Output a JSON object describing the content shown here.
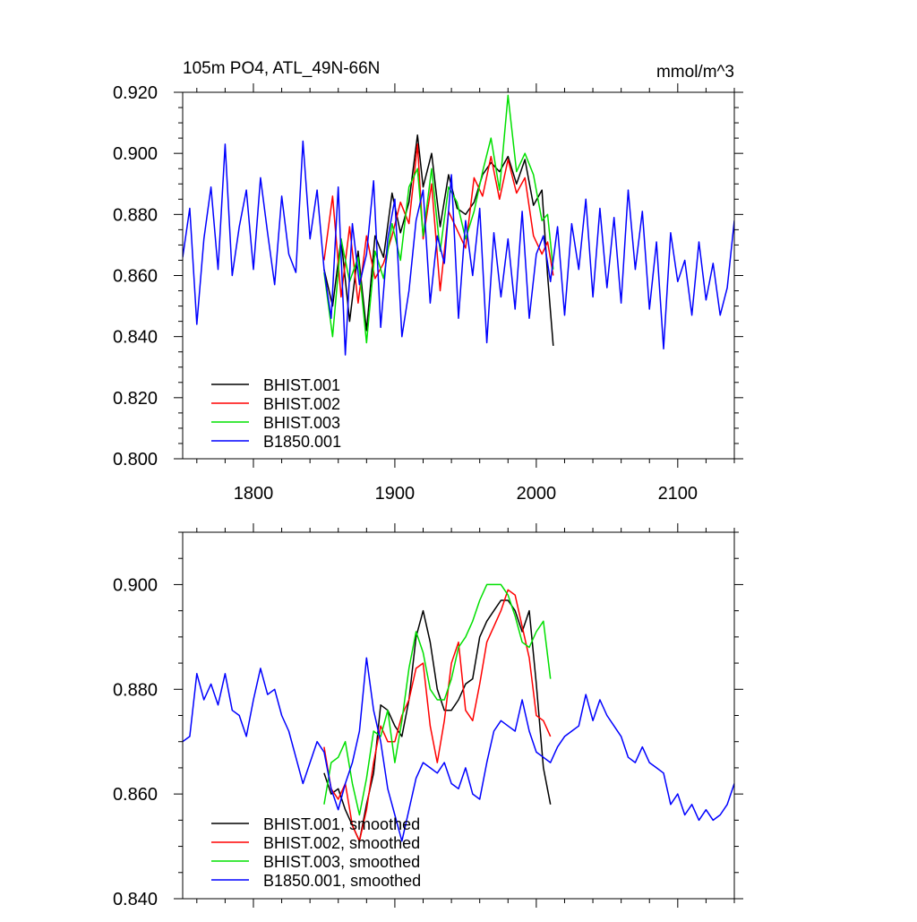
{
  "chart_data": [
    {
      "type": "line",
      "title": "105m PO4, ATL_49N-66N",
      "units": "mmol/m^3",
      "xlim": [
        1750,
        2140
      ],
      "ylim": [
        0.8,
        0.92
      ],
      "x_ticks": [
        1800,
        1900,
        2000,
        2100
      ],
      "y_ticks": [
        0.8,
        0.82,
        0.84,
        0.86,
        0.88,
        0.9,
        0.92
      ],
      "y_tick_labels": [
        "0.800",
        "0.820",
        "0.840",
        "0.860",
        "0.880",
        "0.900",
        "0.920"
      ],
      "legend_position": "bottom-left",
      "series": [
        {
          "name": "BHIST.001",
          "color": "#000000",
          "x": [
            1850,
            1856,
            1862,
            1868,
            1874,
            1880,
            1886,
            1892,
            1898,
            1904,
            1910,
            1916,
            1920,
            1926,
            1932,
            1938,
            1944,
            1950,
            1956,
            1962,
            1968,
            1974,
            1980,
            1986,
            1992,
            1998,
            2004,
            2008,
            2012
          ],
          "y": [
            0.862,
            0.85,
            0.872,
            0.845,
            0.868,
            0.842,
            0.873,
            0.866,
            0.887,
            0.874,
            0.884,
            0.906,
            0.889,
            0.9,
            0.876,
            0.893,
            0.882,
            0.88,
            0.884,
            0.893,
            0.897,
            0.894,
            0.899,
            0.89,
            0.898,
            0.883,
            0.888,
            0.86,
            0.837
          ]
        },
        {
          "name": "BHIST.002",
          "color": "#ff0000",
          "x": [
            1850,
            1856,
            1862,
            1868,
            1874,
            1880,
            1886,
            1892,
            1898,
            1904,
            1910,
            1916,
            1920,
            1926,
            1932,
            1938,
            1944,
            1950,
            1956,
            1962,
            1968,
            1974,
            1980,
            1986,
            1992,
            1998,
            2004,
            2008,
            2012
          ],
          "y": [
            0.865,
            0.886,
            0.853,
            0.876,
            0.851,
            0.873,
            0.859,
            0.864,
            0.873,
            0.884,
            0.877,
            0.903,
            0.872,
            0.89,
            0.855,
            0.881,
            0.875,
            0.869,
            0.892,
            0.886,
            0.899,
            0.885,
            0.898,
            0.887,
            0.892,
            0.873,
            0.867,
            0.871,
            0.86
          ]
        },
        {
          "name": "BHIST.003",
          "color": "#00e000",
          "x": [
            1850,
            1856,
            1862,
            1868,
            1874,
            1880,
            1886,
            1892,
            1898,
            1904,
            1910,
            1916,
            1920,
            1926,
            1932,
            1938,
            1944,
            1950,
            1956,
            1962,
            1968,
            1974,
            1980,
            1986,
            1992,
            1998,
            2004,
            2008,
            2012
          ],
          "y": [
            0.861,
            0.84,
            0.872,
            0.858,
            0.866,
            0.838,
            0.868,
            0.859,
            0.877,
            0.865,
            0.889,
            0.895,
            0.873,
            0.895,
            0.868,
            0.889,
            0.884,
            0.872,
            0.881,
            0.894,
            0.905,
            0.888,
            0.919,
            0.894,
            0.9,
            0.893,
            0.878,
            0.88,
            0.862
          ]
        },
        {
          "name": "B1850.001",
          "color": "#0000ff",
          "x": [
            1750,
            1755,
            1760,
            1765,
            1770,
            1775,
            1780,
            1785,
            1790,
            1795,
            1800,
            1805,
            1810,
            1815,
            1820,
            1825,
            1830,
            1835,
            1840,
            1845,
            1850,
            1855,
            1860,
            1865,
            1870,
            1875,
            1880,
            1885,
            1890,
            1895,
            1900,
            1905,
            1910,
            1915,
            1920,
            1925,
            1930,
            1935,
            1940,
            1945,
            1950,
            1955,
            1960,
            1965,
            1970,
            1975,
            1980,
            1985,
            1990,
            1995,
            2000,
            2005,
            2010,
            2015,
            2020,
            2025,
            2030,
            2035,
            2040,
            2045,
            2050,
            2055,
            2060,
            2065,
            2070,
            2075,
            2080,
            2085,
            2090,
            2095,
            2100,
            2105,
            2110,
            2115,
            2120,
            2125,
            2130,
            2135,
            2140
          ],
          "y": [
            0.866,
            0.882,
            0.844,
            0.872,
            0.889,
            0.862,
            0.903,
            0.86,
            0.876,
            0.888,
            0.862,
            0.892,
            0.874,
            0.857,
            0.886,
            0.867,
            0.861,
            0.904,
            0.872,
            0.888,
            0.862,
            0.846,
            0.889,
            0.834,
            0.877,
            0.857,
            0.867,
            0.891,
            0.843,
            0.872,
            0.885,
            0.84,
            0.855,
            0.878,
            0.888,
            0.851,
            0.873,
            0.864,
            0.893,
            0.846,
            0.878,
            0.86,
            0.882,
            0.838,
            0.874,
            0.853,
            0.872,
            0.849,
            0.881,
            0.846,
            0.867,
            0.873,
            0.858,
            0.876,
            0.847,
            0.877,
            0.862,
            0.885,
            0.853,
            0.882,
            0.856,
            0.879,
            0.851,
            0.888,
            0.862,
            0.881,
            0.849,
            0.871,
            0.836,
            0.874,
            0.858,
            0.865,
            0.847,
            0.871,
            0.852,
            0.864,
            0.847,
            0.856,
            0.878
          ]
        }
      ]
    },
    {
      "type": "line",
      "xlim": [
        1750,
        2140
      ],
      "ylim": [
        0.84,
        0.91
      ],
      "y_ticks": [
        0.84,
        0.86,
        0.88,
        0.9
      ],
      "y_tick_labels": [
        "0.840",
        "0.860",
        "0.880",
        "0.900"
      ],
      "legend_position": "bottom-left",
      "series": [
        {
          "name": "BHIST.001, smoothed",
          "color": "#000000",
          "x": [
            1850,
            1855,
            1860,
            1865,
            1870,
            1875,
            1880,
            1885,
            1890,
            1895,
            1900,
            1905,
            1910,
            1915,
            1920,
            1925,
            1930,
            1935,
            1940,
            1945,
            1950,
            1955,
            1960,
            1965,
            1970,
            1975,
            1980,
            1985,
            1990,
            1995,
            2000,
            2005,
            2010
          ],
          "y": [
            0.864,
            0.86,
            0.861,
            0.857,
            0.854,
            0.851,
            0.858,
            0.864,
            0.877,
            0.876,
            0.873,
            0.871,
            0.878,
            0.89,
            0.895,
            0.889,
            0.88,
            0.876,
            0.876,
            0.878,
            0.881,
            0.882,
            0.89,
            0.893,
            0.895,
            0.897,
            0.897,
            0.895,
            0.891,
            0.895,
            0.881,
            0.865,
            0.858
          ]
        },
        {
          "name": "BHIST.002, smoothed",
          "color": "#ff0000",
          "x": [
            1850,
            1855,
            1860,
            1865,
            1870,
            1875,
            1880,
            1885,
            1890,
            1895,
            1900,
            1905,
            1910,
            1915,
            1920,
            1925,
            1930,
            1935,
            1940,
            1945,
            1950,
            1955,
            1960,
            1965,
            1970,
            1975,
            1980,
            1985,
            1990,
            1995,
            2000,
            2005,
            2010
          ],
          "y": [
            0.869,
            0.861,
            0.859,
            0.862,
            0.854,
            0.851,
            0.857,
            0.866,
            0.873,
            0.87,
            0.87,
            0.875,
            0.878,
            0.884,
            0.885,
            0.873,
            0.866,
            0.874,
            0.885,
            0.889,
            0.876,
            0.874,
            0.881,
            0.889,
            0.892,
            0.895,
            0.899,
            0.898,
            0.892,
            0.886,
            0.875,
            0.874,
            0.871
          ]
        },
        {
          "name": "BHIST.003, smoothed",
          "color": "#00e000",
          "x": [
            1850,
            1855,
            1860,
            1865,
            1870,
            1875,
            1880,
            1885,
            1890,
            1895,
            1900,
            1905,
            1910,
            1915,
            1920,
            1925,
            1930,
            1935,
            1940,
            1945,
            1950,
            1955,
            1960,
            1965,
            1970,
            1975,
            1980,
            1985,
            1990,
            1995,
            2000,
            2005,
            2010
          ],
          "y": [
            0.858,
            0.866,
            0.867,
            0.87,
            0.862,
            0.856,
            0.863,
            0.872,
            0.871,
            0.876,
            0.866,
            0.874,
            0.884,
            0.891,
            0.887,
            0.88,
            0.878,
            0.878,
            0.882,
            0.888,
            0.89,
            0.893,
            0.897,
            0.9,
            0.9,
            0.9,
            0.898,
            0.894,
            0.889,
            0.888,
            0.891,
            0.893,
            0.882
          ]
        },
        {
          "name": "B1850.001, smoothed",
          "color": "#0000ff",
          "x": [
            1750,
            1755,
            1760,
            1765,
            1770,
            1775,
            1780,
            1785,
            1790,
            1795,
            1800,
            1805,
            1810,
            1815,
            1820,
            1825,
            1830,
            1835,
            1840,
            1845,
            1850,
            1855,
            1860,
            1865,
            1870,
            1875,
            1880,
            1885,
            1890,
            1895,
            1900,
            1905,
            1910,
            1915,
            1920,
            1925,
            1930,
            1935,
            1940,
            1945,
            1950,
            1955,
            1960,
            1965,
            1970,
            1975,
            1980,
            1985,
            1990,
            1995,
            2000,
            2005,
            2010,
            2015,
            2020,
            2025,
            2030,
            2035,
            2040,
            2045,
            2050,
            2055,
            2060,
            2065,
            2070,
            2075,
            2080,
            2085,
            2090,
            2095,
            2100,
            2105,
            2110,
            2115,
            2120,
            2125,
            2130,
            2135,
            2140
          ],
          "y": [
            0.87,
            0.871,
            0.883,
            0.878,
            0.881,
            0.877,
            0.883,
            0.876,
            0.875,
            0.871,
            0.878,
            0.884,
            0.879,
            0.88,
            0.875,
            0.872,
            0.867,
            0.862,
            0.866,
            0.87,
            0.868,
            0.861,
            0.857,
            0.862,
            0.866,
            0.872,
            0.886,
            0.876,
            0.87,
            0.861,
            0.856,
            0.851,
            0.857,
            0.863,
            0.866,
            0.865,
            0.864,
            0.866,
            0.862,
            0.861,
            0.865,
            0.86,
            0.859,
            0.866,
            0.872,
            0.874,
            0.873,
            0.872,
            0.878,
            0.872,
            0.868,
            0.867,
            0.866,
            0.869,
            0.871,
            0.872,
            0.873,
            0.879,
            0.874,
            0.878,
            0.875,
            0.873,
            0.871,
            0.867,
            0.866,
            0.869,
            0.866,
            0.865,
            0.864,
            0.858,
            0.86,
            0.856,
            0.858,
            0.855,
            0.857,
            0.855,
            0.856,
            0.858,
            0.862
          ]
        }
      ]
    }
  ]
}
